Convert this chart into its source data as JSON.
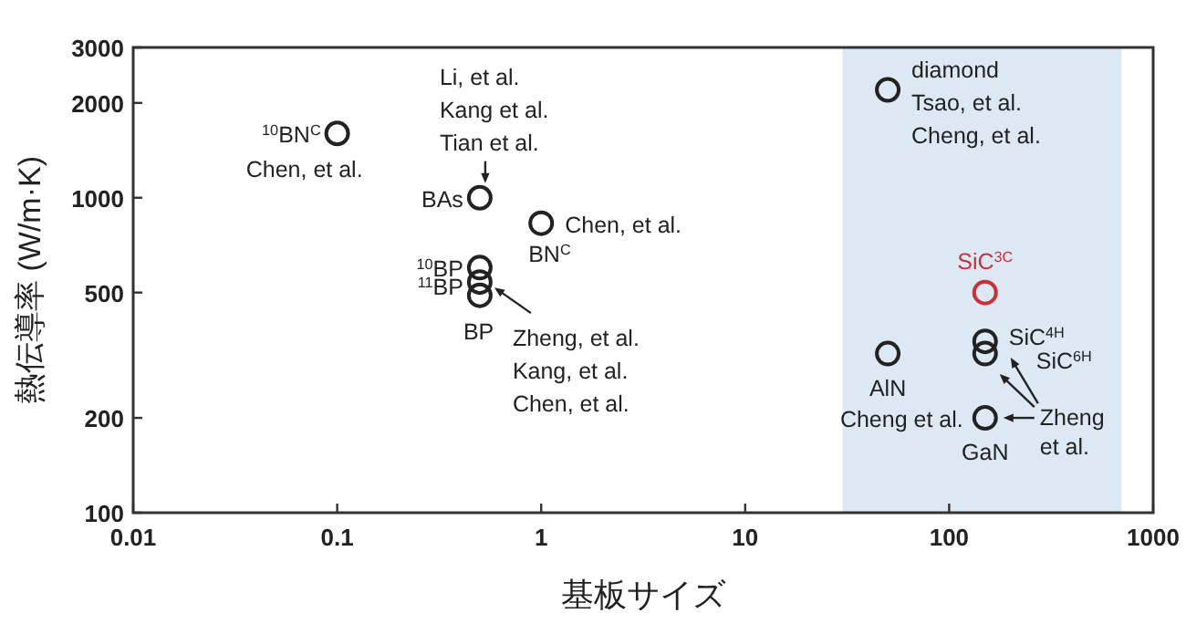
{
  "chart_data": {
    "type": "scatter",
    "xlabel": "基板サイズ",
    "ylabel": "熱伝導率 (W/m·K)",
    "x": [
      0.1,
      0.5,
      1,
      0.5,
      0.5,
      0.5,
      50,
      50,
      150,
      150,
      150,
      150
    ],
    "series": [
      {
        "colors": [
          "#222222",
          "#222222",
          "#222222",
          "#222222",
          "#222222",
          "#222222",
          "#222222",
          "#222222",
          "#c8303a",
          "#222222",
          "#222222",
          "#222222"
        ],
        "values": [
          1600,
          1000,
          830,
          600,
          540,
          490,
          2200,
          320,
          500,
          350,
          320,
          200
        ]
      }
    ],
    "log": "xy",
    "xlim": [
      0.01,
      1000
    ],
    "ylim": [
      100,
      3000
    ],
    "xticks": [
      0.01,
      0.1,
      1,
      10,
      100,
      1000
    ],
    "yticks": [
      100,
      200,
      500,
      1000,
      2000,
      3000
    ],
    "marker": "circle",
    "grid": false,
    "bands": [
      {
        "axis": "x",
        "from": 30,
        "to": 700,
        "color": "#dde8f5"
      }
    ],
    "annotations": [
      {
        "text": "$^{10}$BN$^{C}$",
        "x": 0.1,
        "y": 1600
      },
      {
        "text": "Chen, et al.",
        "x": 0.1,
        "y": 1600
      },
      {
        "text": "BAs",
        "x": 0.5,
        "y": 1000
      },
      {
        "text": "Li, et al.\nKang et al.\nTian et al.",
        "x": 0.5,
        "y": 1000
      },
      {
        "text": "BN$^{C}$",
        "x": 1,
        "y": 830
      },
      {
        "text": "Chen, et al.",
        "x": 1,
        "y": 830
      },
      {
        "text": "$^{10}$BP",
        "x": 0.5,
        "y": 600
      },
      {
        "text": "$^{11}$BP",
        "x": 0.5,
        "y": 540
      },
      {
        "text": "BP",
        "x": 0.5,
        "y": 490
      },
      {
        "text": "Zheng, et al.\nKang, et al.\nChen, et al.",
        "x": 0.5,
        "y": 540
      },
      {
        "text": "diamond\nTsao, et al.\nCheng, et al.",
        "x": 50,
        "y": 2200
      },
      {
        "text": "SiC$^{3C}$",
        "x": 150,
        "y": 500
      },
      {
        "text": "SiC$^{4H}$",
        "x": 150,
        "y": 350
      },
      {
        "text": "SiC$^{6H}$",
        "x": 150,
        "y": 320
      },
      {
        "text": "AlN",
        "x": 50,
        "y": 320
      },
      {
        "text": "Cheng et al.",
        "x": 150,
        "y": 200
      },
      {
        "text": "GaN",
        "x": 150,
        "y": 200
      },
      {
        "text": "Zheng\net al.",
        "x": 150,
        "y": 200
      }
    ]
  }
}
